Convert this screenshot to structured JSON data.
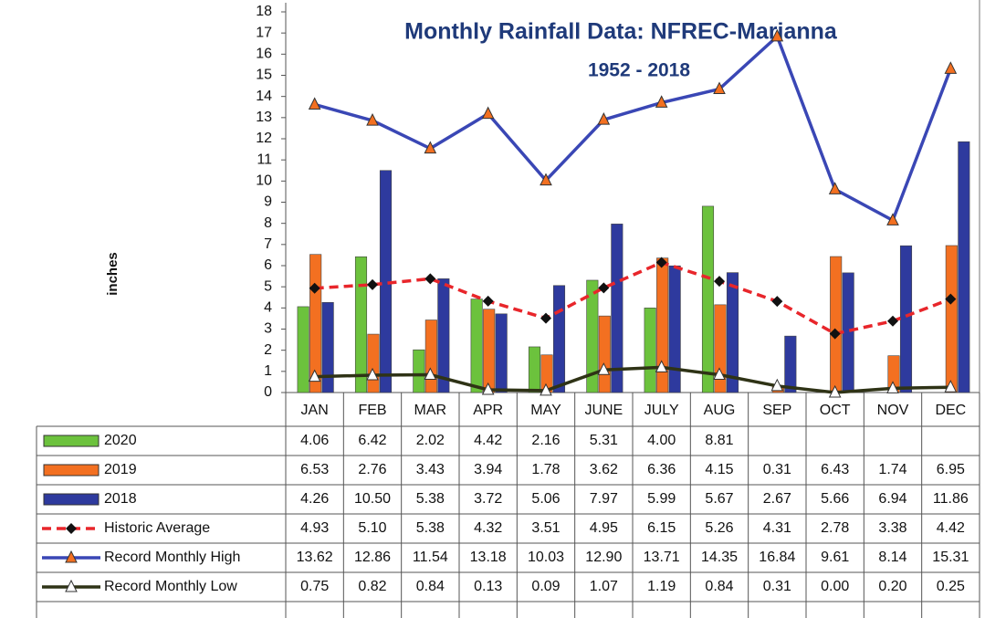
{
  "chart_data": {
    "type": "bar",
    "title": "Monthly Rainfall Data: NFREC-Marianna",
    "subtitle": "1952 - 2018",
    "y_label": "inches",
    "categories": [
      "JAN",
      "FEB",
      "MAR",
      "APR",
      "MAY",
      "JUNE",
      "JULY",
      "AUG",
      "SEP",
      "OCT",
      "NOV",
      "DEC"
    ],
    "ylim": [
      0,
      18
    ],
    "yticks": [
      0,
      1,
      2,
      3,
      4,
      5,
      6,
      7,
      8,
      9,
      10,
      11,
      12,
      13,
      14,
      15,
      16,
      17,
      18
    ],
    "series": [
      {
        "name": "2020",
        "type": "bar",
        "color": "#6cc23d",
        "values": [
          4.06,
          6.42,
          2.02,
          4.42,
          2.16,
          5.31,
          4.0,
          8.81,
          null,
          null,
          null,
          null
        ],
        "value_labels": [
          "4.06",
          "6.42",
          "2.02",
          "4.42",
          "2.16",
          "5.31",
          "4.00",
          "8.81",
          null,
          null,
          null,
          null
        ]
      },
      {
        "name": "2019",
        "type": "bar",
        "color": "#f37021",
        "values": [
          6.53,
          2.76,
          3.43,
          3.94,
          1.78,
          3.62,
          6.36,
          4.15,
          0.31,
          6.43,
          1.74,
          6.95
        ],
        "value_labels": [
          "6.53",
          "2.76",
          "3.43",
          "3.94",
          "1.78",
          "3.62",
          "6.36",
          "4.15",
          "0.31",
          "6.43",
          "1.74",
          "6.95"
        ]
      },
      {
        "name": "2018",
        "type": "bar",
        "color": "#2e3a9e",
        "values": [
          4.26,
          10.5,
          5.38,
          3.72,
          5.06,
          7.97,
          5.99,
          5.67,
          2.67,
          5.66,
          6.94,
          11.86
        ],
        "value_labels": [
          "4.26",
          "10.50",
          "5.38",
          "3.72",
          "5.06",
          "7.97",
          "5.99",
          "5.67",
          "2.67",
          "5.66",
          "6.94",
          "11.86"
        ]
      },
      {
        "name": "Historic Average",
        "type": "line",
        "color": "#e8262b",
        "dashed": true,
        "marker": "diamond",
        "marker_color": "#111111",
        "values": [
          4.93,
          5.1,
          5.38,
          4.32,
          3.51,
          4.95,
          6.15,
          5.26,
          4.31,
          2.78,
          3.38,
          4.42
        ],
        "value_labels": [
          "4.93",
          "5.10",
          "5.38",
          "4.32",
          "3.51",
          "4.95",
          "6.15",
          "5.26",
          "4.31",
          "2.78",
          "3.38",
          "4.42"
        ]
      },
      {
        "name": "Record Monthly High",
        "type": "line",
        "color": "#3a47b5",
        "dashed": false,
        "marker": "triangle",
        "marker_color": "#f37021",
        "values": [
          13.62,
          12.86,
          11.54,
          13.18,
          10.03,
          12.9,
          13.71,
          14.35,
          16.84,
          9.61,
          8.14,
          15.31
        ],
        "value_labels": [
          "13.62",
          "12.86",
          "11.54",
          "13.18",
          "10.03",
          "12.90",
          "13.71",
          "14.35",
          "16.84",
          "9.61",
          "8.14",
          "15.31"
        ]
      },
      {
        "name": "Record Monthly Low",
        "type": "line",
        "color": "#2f3316",
        "dashed": false,
        "marker": "triangle",
        "marker_color": "#ffffff",
        "values": [
          0.75,
          0.82,
          0.84,
          0.13,
          0.09,
          1.07,
          1.19,
          0.84,
          0.31,
          0.0,
          0.2,
          0.25
        ],
        "value_labels": [
          "0.75",
          "0.82",
          "0.84",
          "0.13",
          "0.09",
          "1.07",
          "1.19",
          "0.84",
          "0.31",
          "0.00",
          "0.20",
          "0.25"
        ]
      }
    ]
  }
}
